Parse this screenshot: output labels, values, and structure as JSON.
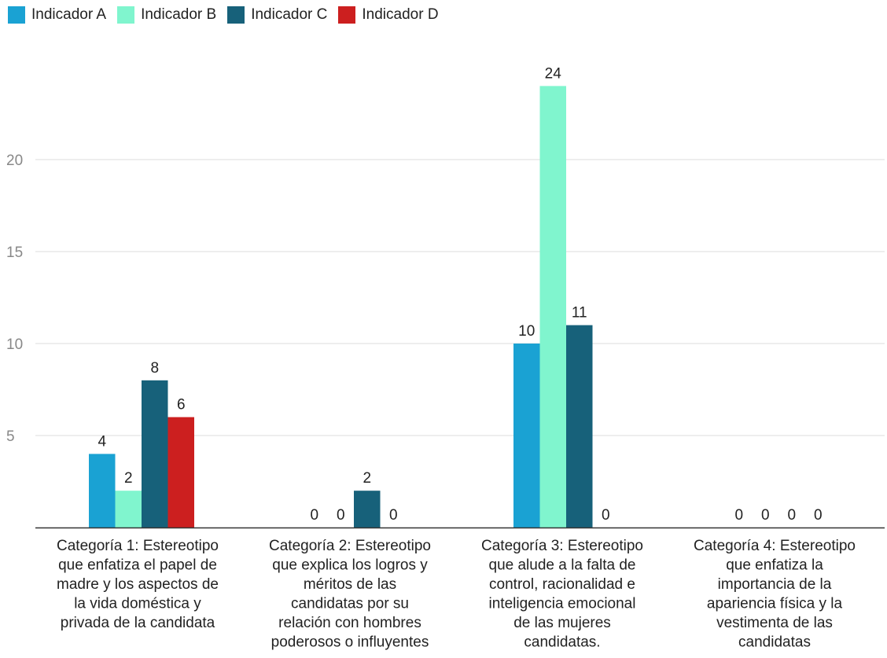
{
  "chart_data": {
    "type": "bar",
    "categories": [
      [
        "Categoría 1: Estereotipo",
        "que enfatiza el papel de",
        "madre y los aspectos de",
        "la vida doméstica y",
        "privada de la candidata"
      ],
      [
        "Categoría 2: Estereotipo",
        "que explica los logros y",
        "méritos de las",
        "candidatas por su",
        "relación con hombres",
        "poderosos o influyentes"
      ],
      [
        "Categoría 3: Estereotipo",
        "que alude a la falta de",
        "control, racionalidad e",
        "inteligencia emocional",
        "de las mujeres",
        "candidatas."
      ],
      [
        "Categoría 4: Estereotipo",
        "que enfatiza la",
        "importancia de la",
        "apariencia física y la",
        "vestimenta de las",
        "candidatas"
      ]
    ],
    "series": [
      {
        "name": "Indicador A",
        "color": "#1aa2d3",
        "values": [
          4,
          0,
          10,
          0
        ]
      },
      {
        "name": "Indicador B",
        "color": "#80f5ce",
        "values": [
          2,
          0,
          24,
          0
        ]
      },
      {
        "name": "Indicador C",
        "color": "#17617a",
        "values": [
          8,
          2,
          11,
          0
        ]
      },
      {
        "name": "Indicador D",
        "color": "#cc1f1f",
        "values": [
          6,
          0,
          0,
          0
        ]
      }
    ],
    "yticks": [
      5,
      10,
      15,
      20
    ],
    "ylim": [
      0,
      25
    ],
    "grid": true,
    "legend_position": "top-left"
  }
}
